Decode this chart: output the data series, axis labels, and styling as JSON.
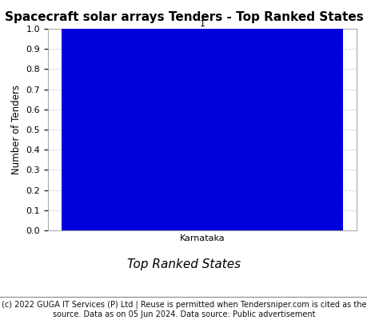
{
  "title": "Spacecraft solar arrays Tenders - Top Ranked States",
  "categories": [
    "Karnataka"
  ],
  "values": [
    1
  ],
  "bar_color": "#0000dd",
  "ylabel": "Number of Tenders",
  "xlabel": "Top Ranked States",
  "ylim": [
    0,
    1.0
  ],
  "yticks": [
    0.0,
    0.1,
    0.2,
    0.3,
    0.4,
    0.5,
    0.6,
    0.7,
    0.8,
    0.9,
    1.0
  ],
  "bar_label_value": "1",
  "footnote_line1": "(c) 2022 GUGA IT Services (P) Ltd | Reuse is permitted when Tendersniper.com is cited as the",
  "footnote_line2": "source. Data as on 05 Jun 2024. Data source: Public advertisement",
  "title_fontsize": 11,
  "axis_label_fontsize": 8.5,
  "tick_fontsize": 8,
  "footnote_fontsize": 7,
  "xlabel_fontsize": 11,
  "grid_color": "#cccccc",
  "background_color": "#ffffff",
  "plot_bg_color": "#ffffff"
}
